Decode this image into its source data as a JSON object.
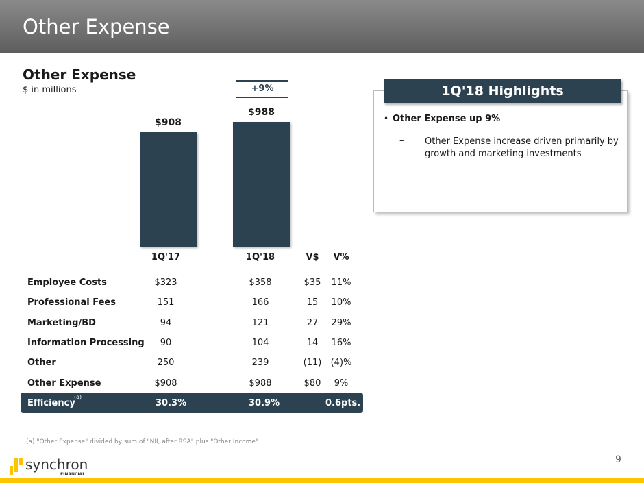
{
  "header": {
    "title": "Other Expense"
  },
  "chart_data": {
    "type": "bar",
    "title": "Other Expense",
    "subtitle": "$ in millions",
    "categories": [
      "1Q'17",
      "1Q'18"
    ],
    "values": [
      908,
      988
    ],
    "value_labels": [
      "$908",
      "$988"
    ],
    "change_label": "+9%",
    "bar_color": "#2c4251",
    "ylim": [
      0,
      1000
    ],
    "grid": false
  },
  "table": {
    "columns": [
      "1Q'17",
      "1Q'18",
      "V$",
      "V%"
    ],
    "rows": [
      {
        "label": "Employee Costs",
        "values": [
          "$323",
          "$358",
          "$35",
          "11%"
        ]
      },
      {
        "label": "Professional Fees",
        "values": [
          "151",
          "166",
          "15",
          "10%"
        ]
      },
      {
        "label": "Marketing/BD",
        "values": [
          "94",
          "121",
          "27",
          "29%"
        ]
      },
      {
        "label": "Information Processing",
        "values": [
          "90",
          "104",
          "14",
          "16%"
        ]
      },
      {
        "label": "Other",
        "values": [
          "250",
          "239",
          "(11)",
          "(4)%"
        ]
      },
      {
        "label": "Other Expense",
        "values": [
          "$908",
          "$988",
          "$80",
          "9%"
        ]
      }
    ],
    "efficiency": {
      "label": "Efficiency",
      "footnote_mark": "(a)",
      "values": [
        "30.3%",
        "30.9%",
        "0.6pts."
      ]
    }
  },
  "footnote": "(a) \"Other Expense\" divided by sum of \"NII, after RSA\" plus \"Other Income\"",
  "highlights": {
    "title": "1Q'18 Highlights",
    "bullet": "Other Expense up 9%",
    "sub_bullet": "Other Expense increase driven primarily by growth and marketing investments"
  },
  "logo": {
    "name": "synchrony",
    "tagline": "FINANCIAL"
  },
  "page_number": "9",
  "colors": {
    "accent": "#2c4251",
    "brand_yellow": "#fdc500"
  }
}
